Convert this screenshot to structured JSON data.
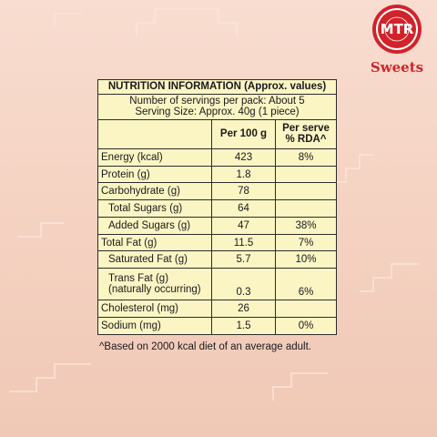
{
  "brand": {
    "name": "MTR",
    "wordmark": "Sweets",
    "red": "#d2232a"
  },
  "panel_color": "#fbf5c4",
  "table": {
    "title": "NUTRITION INFORMATION (Approx. values)",
    "servings_line": "Number of servings per pack: About 5",
    "serving_size_line": "Serving Size: Approx. 40g (1 piece)",
    "col_per100": "Per 100 g",
    "col_rda_line1": "Per serve",
    "col_rda_line2": "% RDA^",
    "rows": [
      {
        "label": "Energy (kcal)",
        "per100": "423",
        "rda": "8%"
      },
      {
        "label": "Protein (g)",
        "per100": "1.8",
        "rda": ""
      },
      {
        "label": "Carbohydrate (g)",
        "per100": "78",
        "rda": ""
      },
      {
        "label": "Total Sugars (g)",
        "per100": "64",
        "rda": ""
      },
      {
        "label": "Added Sugars (g)",
        "per100": "47",
        "rda": "38%"
      },
      {
        "label": "Total Fat (g)",
        "per100": "11.5",
        "rda": "7%"
      },
      {
        "label": "Saturated Fat (g)",
        "per100": "5.7",
        "rda": "10%"
      },
      {
        "label": "Trans Fat (g)",
        "label_line2": "(naturally occurring)",
        "per100": "0.3",
        "rda": "6%"
      },
      {
        "label": "Cholesterol (mg)",
        "per100": "26",
        "rda": ""
      },
      {
        "label": "Sodium (mg)",
        "per100": "1.5",
        "rda": "0%"
      }
    ]
  },
  "footnote": "^Based on 2000 kcal diet of an average adult."
}
